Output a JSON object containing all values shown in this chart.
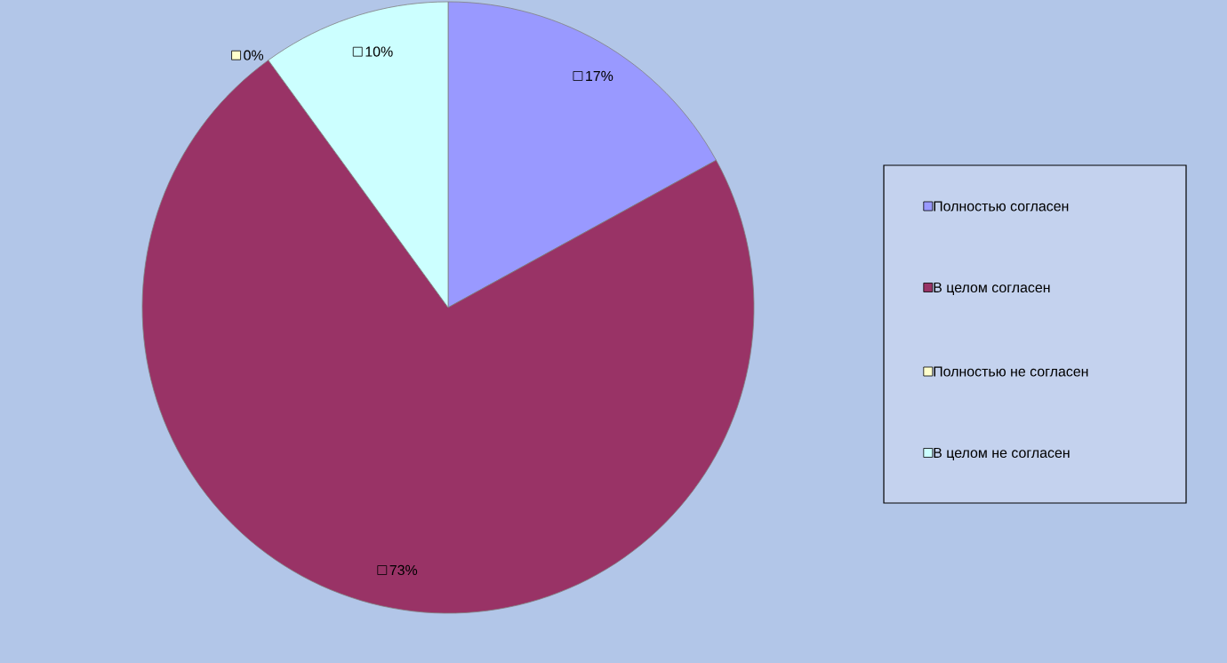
{
  "chart_data": {
    "type": "pie",
    "categories": [
      "Полностью согласен",
      "В целом согласен",
      "Полностью не согласен",
      "В целом не согласен"
    ],
    "values": [
      17,
      73,
      0,
      10
    ],
    "colors": [
      "#9999ff",
      "#993366",
      "#ffffcc",
      "#ccffff"
    ],
    "value_labels": [
      "17%",
      "73%",
      "0%",
      "10%"
    ],
    "legend": "right"
  }
}
